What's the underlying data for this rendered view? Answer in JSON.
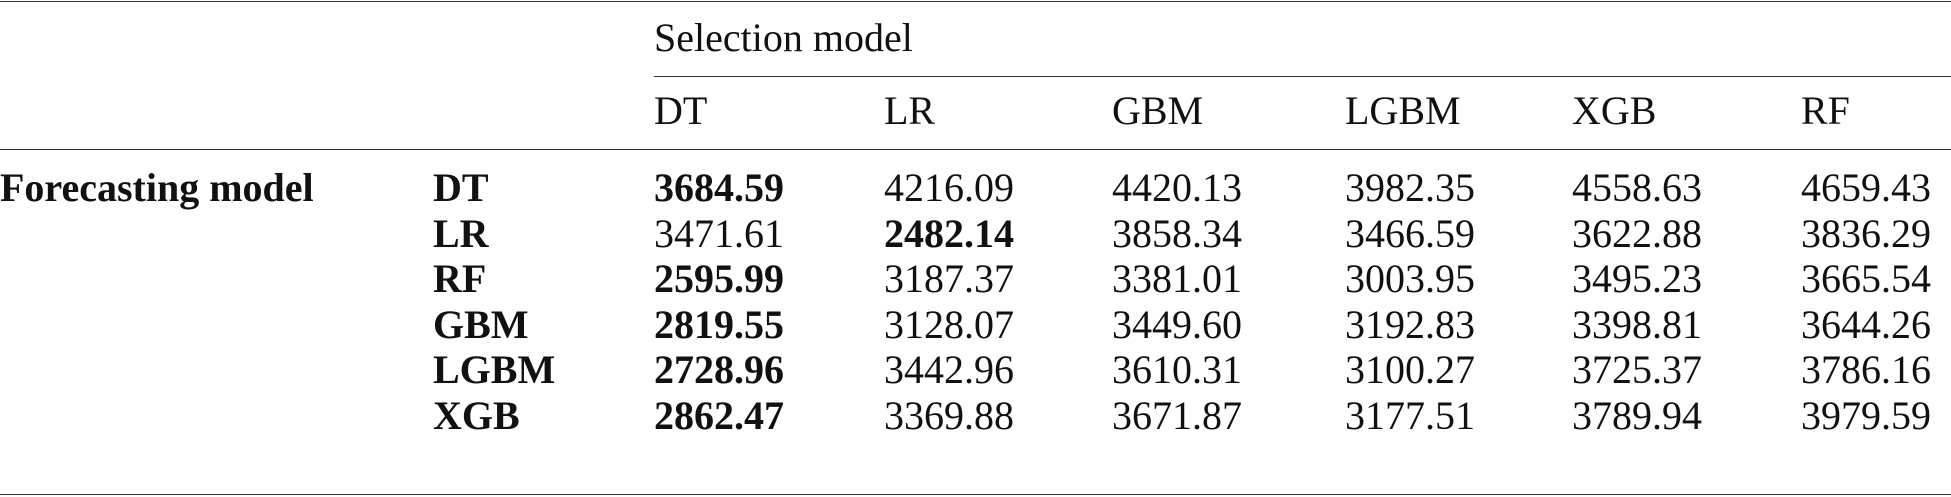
{
  "table": {
    "group_label": "Forecasting model",
    "column_group": "Selection model",
    "columns": [
      "DT",
      "LR",
      "GBM",
      "LGBM",
      "XGB",
      "RF"
    ],
    "rows": [
      {
        "label": "DT",
        "values": [
          "3684.59",
          "4216.09",
          "4420.13",
          "3982.35",
          "4558.63",
          "4659.43"
        ]
      },
      {
        "label": "LR",
        "values": [
          "3471.61",
          "2482.14",
          "3858.34",
          "3466.59",
          "3622.88",
          "3836.29"
        ]
      },
      {
        "label": "RF",
        "values": [
          "2595.99",
          "3187.37",
          "3381.01",
          "3003.95",
          "3495.23",
          "3665.54"
        ]
      },
      {
        "label": "GBM",
        "values": [
          "2819.55",
          "3128.07",
          "3449.60",
          "3192.83",
          "3398.81",
          "3644.26"
        ]
      },
      {
        "label": "LGBM",
        "values": [
          "2728.96",
          "3442.96",
          "3610.31",
          "3100.27",
          "3725.37",
          "3786.16"
        ]
      },
      {
        "label": "XGB",
        "values": [
          "2862.47",
          "3369.88",
          "3671.87",
          "3177.51",
          "3789.94",
          "3979.59"
        ]
      }
    ]
  }
}
